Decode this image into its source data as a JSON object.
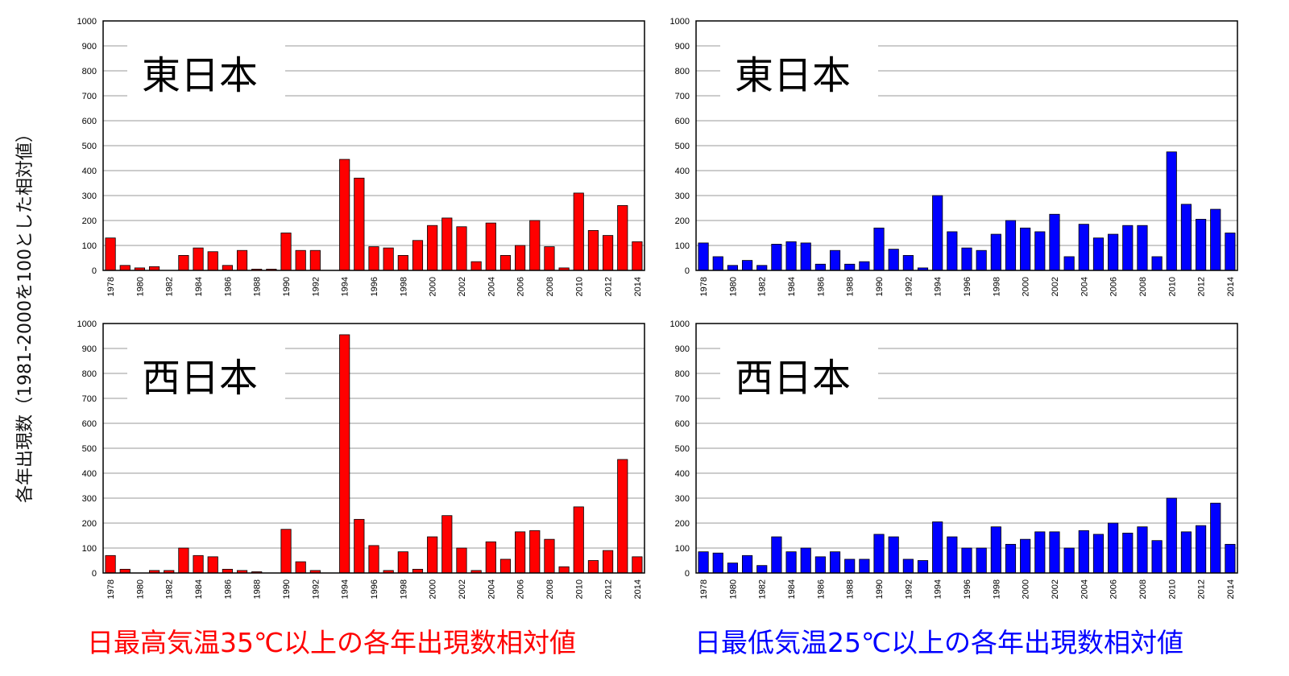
{
  "y_axis_label": "各年出現数（1981-2000を100とした相対値）",
  "captions": {
    "left": "日最高気温35℃以上の各年出現数相対値",
    "right": "日最低気温25℃以上の各年出現数相対値",
    "left_color": "#ff0000",
    "right_color": "#0000ff"
  },
  "chart_data": [
    {
      "type": "bar",
      "title": "東日本",
      "color": "#ff0000",
      "ylim": [
        0,
        1000
      ],
      "yticks": [
        0,
        100,
        200,
        300,
        400,
        500,
        600,
        700,
        800,
        900,
        1000
      ],
      "grid": true,
      "categories": [
        1978,
        1979,
        1980,
        1981,
        1982,
        1983,
        1984,
        1985,
        1986,
        1987,
        1988,
        1989,
        1990,
        1991,
        1992,
        1993,
        1994,
        1995,
        1996,
        1997,
        1998,
        1999,
        2000,
        2001,
        2002,
        2003,
        2004,
        2005,
        2006,
        2007,
        2008,
        2009,
        2010,
        2011,
        2012,
        2013,
        2014
      ],
      "tick_labels": [
        1978,
        1980,
        1982,
        1984,
        1986,
        1988,
        1990,
        1992,
        1994,
        1996,
        1998,
        2000,
        2002,
        2004,
        2006,
        2008,
        2010,
        2012,
        2014
      ],
      "values": [
        130,
        20,
        10,
        15,
        0,
        60,
        90,
        75,
        20,
        80,
        5,
        5,
        150,
        80,
        80,
        0,
        445,
        370,
        95,
        90,
        60,
        120,
        180,
        210,
        175,
        35,
        190,
        60,
        100,
        200,
        95,
        10,
        310,
        160,
        140,
        260,
        115
      ]
    },
    {
      "type": "bar",
      "title": "東日本",
      "color": "#0000ff",
      "ylim": [
        0,
        1000
      ],
      "yticks": [
        0,
        100,
        200,
        300,
        400,
        500,
        600,
        700,
        800,
        900,
        1000
      ],
      "grid": true,
      "categories": [
        1978,
        1979,
        1980,
        1981,
        1982,
        1983,
        1984,
        1985,
        1986,
        1987,
        1988,
        1989,
        1990,
        1991,
        1992,
        1993,
        1994,
        1995,
        1996,
        1997,
        1998,
        1999,
        2000,
        2001,
        2002,
        2003,
        2004,
        2005,
        2006,
        2007,
        2008,
        2009,
        2010,
        2011,
        2012,
        2013,
        2014
      ],
      "tick_labels": [
        1978,
        1980,
        1982,
        1984,
        1986,
        1988,
        1990,
        1992,
        1994,
        1996,
        1998,
        2000,
        2002,
        2004,
        2006,
        2008,
        2010,
        2012,
        2014
      ],
      "values": [
        110,
        55,
        20,
        40,
        20,
        105,
        115,
        110,
        25,
        80,
        25,
        35,
        170,
        85,
        60,
        10,
        300,
        155,
        90,
        80,
        145,
        200,
        170,
        155,
        225,
        55,
        185,
        130,
        145,
        180,
        180,
        55,
        475,
        265,
        205,
        245,
        150
      ]
    },
    {
      "type": "bar",
      "title": "西日本",
      "color": "#ff0000",
      "ylim": [
        0,
        1000
      ],
      "yticks": [
        0,
        100,
        200,
        300,
        400,
        500,
        600,
        700,
        800,
        900,
        1000
      ],
      "grid": true,
      "categories": [
        1978,
        1979,
        1980,
        1981,
        1982,
        1983,
        1984,
        1985,
        1986,
        1987,
        1988,
        1989,
        1990,
        1991,
        1992,
        1993,
        1994,
        1995,
        1996,
        1997,
        1998,
        1999,
        2000,
        2001,
        2002,
        2003,
        2004,
        2005,
        2006,
        2007,
        2008,
        2009,
        2010,
        2011,
        2012,
        2013,
        2014
      ],
      "tick_labels": [
        1978,
        1980,
        1982,
        1984,
        1986,
        1988,
        1990,
        1992,
        1994,
        1996,
        1998,
        2000,
        2002,
        2004,
        2006,
        2008,
        2010,
        2012,
        2014
      ],
      "values": [
        70,
        15,
        0,
        10,
        10,
        100,
        70,
        65,
        15,
        10,
        5,
        0,
        175,
        45,
        10,
        0,
        955,
        215,
        110,
        10,
        85,
        15,
        145,
        230,
        100,
        10,
        125,
        55,
        165,
        170,
        135,
        25,
        265,
        50,
        90,
        455,
        65
      ]
    },
    {
      "type": "bar",
      "title": "西日本",
      "color": "#0000ff",
      "ylim": [
        0,
        1000
      ],
      "yticks": [
        0,
        100,
        200,
        300,
        400,
        500,
        600,
        700,
        800,
        900,
        1000
      ],
      "grid": true,
      "categories": [
        1978,
        1979,
        1980,
        1981,
        1982,
        1983,
        1984,
        1985,
        1986,
        1987,
        1988,
        1989,
        1990,
        1991,
        1992,
        1993,
        1994,
        1995,
        1996,
        1997,
        1998,
        1999,
        2000,
        2001,
        2002,
        2003,
        2004,
        2005,
        2006,
        2007,
        2008,
        2009,
        2010,
        2011,
        2012,
        2013,
        2014
      ],
      "tick_labels": [
        1978,
        1980,
        1982,
        1984,
        1986,
        1988,
        1990,
        1992,
        1994,
        1996,
        1998,
        2000,
        2002,
        2004,
        2006,
        2008,
        2010,
        2012,
        2014
      ],
      "values": [
        85,
        80,
        40,
        70,
        30,
        145,
        85,
        100,
        65,
        85,
        55,
        55,
        155,
        145,
        55,
        50,
        205,
        145,
        100,
        100,
        185,
        115,
        135,
        165,
        165,
        100,
        170,
        155,
        200,
        160,
        185,
        130,
        300,
        165,
        190,
        280,
        115
      ]
    }
  ]
}
